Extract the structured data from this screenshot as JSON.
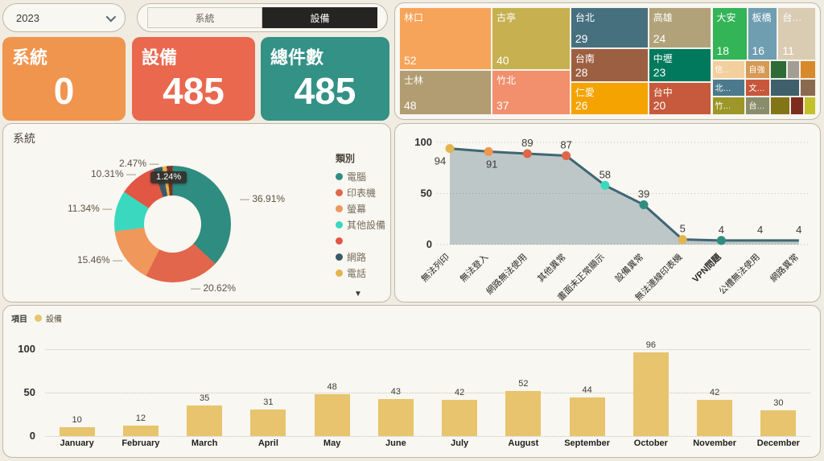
{
  "controls": {
    "year_dropdown": {
      "value": "2023"
    },
    "toggle": {
      "left": "系統",
      "right": "設備"
    }
  },
  "kpis": [
    {
      "label": "系統",
      "value": "0",
      "color": "#F0954E"
    },
    {
      "label": "設備",
      "value": "485",
      "color": "#E9684E"
    },
    {
      "label": "總件數",
      "value": "485",
      "color": "#349186"
    }
  ],
  "chart_data": [
    {
      "type": "treemap",
      "tiles": [
        {
          "label": "林口",
          "value": "52",
          "color": "#F6A45A",
          "x": 0,
          "y": 0,
          "w": 22.2,
          "h": 58.4
        },
        {
          "label": "士林",
          "value": "48",
          "color": "#B29C71",
          "x": 0,
          "y": 58.4,
          "w": 22.2,
          "h": 41.6
        },
        {
          "label": "古亭",
          "value": "40",
          "color": "#C6B04F",
          "x": 22.2,
          "y": 0,
          "w": 18.9,
          "h": 58.4
        },
        {
          "label": "竹北",
          "value": "37",
          "color": "#F28F6D",
          "x": 22.2,
          "y": 58.4,
          "w": 18.9,
          "h": 41.6
        },
        {
          "label": "台北",
          "value": "29",
          "color": "#47707F",
          "x": 41.1,
          "y": 0,
          "w": 18.7,
          "h": 38.0
        },
        {
          "label": "台南",
          "value": "28",
          "color": "#9D5F41",
          "x": 41.1,
          "y": 38.0,
          "w": 18.7,
          "h": 31.3
        },
        {
          "label": "仁愛",
          "value": "26",
          "color": "#F5A300",
          "x": 41.1,
          "y": 69.3,
          "w": 18.7,
          "h": 30.7
        },
        {
          "label": "高雄",
          "value": "24",
          "color": "#B1A279",
          "x": 59.8,
          "y": 0,
          "w": 15.2,
          "h": 38.0
        },
        {
          "label": "中壢",
          "value": "23",
          "color": "#00795C",
          "x": 59.8,
          "y": 38.0,
          "w": 15.2,
          "h": 31.3
        },
        {
          "label": "台中",
          "value": "20",
          "color": "#C75A3C",
          "x": 59.8,
          "y": 69.3,
          "w": 15.2,
          "h": 30.7
        },
        {
          "label": "大安",
          "value": "18",
          "color": "#33B457",
          "x": 75.0,
          "y": 0,
          "w": 8.5,
          "h": 49.6
        },
        {
          "label": "板橋",
          "value": "16",
          "color": "#6F9EB1",
          "x": 83.5,
          "y": 0,
          "w": 7.3,
          "h": 49.6
        },
        {
          "label": "台…",
          "value": "11",
          "color": "#D9CCB3",
          "x": 90.8,
          "y": 0,
          "w": 9.2,
          "h": 49.6
        },
        {
          "label": "信…",
          "value": "",
          "color": "#F2CF9D",
          "x": 75.0,
          "y": 49.6,
          "w": 8.1,
          "h": 16.8
        },
        {
          "label": "自強",
          "value": "",
          "color": "#D59A55",
          "x": 83.1,
          "y": 49.6,
          "w": 5.9,
          "h": 16.8
        },
        {
          "label": "",
          "value": "",
          "color": "#2E6B35",
          "x": 89.0,
          "y": 49.6,
          "w": 4.0,
          "h": 16.8
        },
        {
          "label": "",
          "value": "",
          "color": "#A49D93",
          "x": 93.0,
          "y": 49.6,
          "w": 3.2,
          "h": 16.8
        },
        {
          "label": "",
          "value": "",
          "color": "#D8892B",
          "x": 96.2,
          "y": 49.6,
          "w": 3.8,
          "h": 16.8
        },
        {
          "label": "北…",
          "value": "",
          "color": "#4C7A8C",
          "x": 75.0,
          "y": 66.4,
          "w": 8.1,
          "h": 16.8
        },
        {
          "label": "文…",
          "value": "",
          "color": "#C7573B",
          "x": 83.1,
          "y": 66.4,
          "w": 5.9,
          "h": 16.8
        },
        {
          "label": "",
          "value": "",
          "color": "#3E5F6B",
          "x": 89.0,
          "y": 66.4,
          "w": 7.2,
          "h": 16.8
        },
        {
          "label": "",
          "value": "",
          "color": "#8A6A4F",
          "x": 96.2,
          "y": 66.4,
          "w": 3.8,
          "h": 16.8
        },
        {
          "label": "竹…",
          "value": "",
          "color": "#9C9728",
          "x": 75.0,
          "y": 83.2,
          "w": 8.1,
          "h": 16.8
        },
        {
          "label": "台…",
          "value": "",
          "color": "#8A8D6B",
          "x": 83.1,
          "y": 83.2,
          "w": 5.9,
          "h": 16.8
        },
        {
          "label": "",
          "value": "",
          "color": "#827518",
          "x": 89.0,
          "y": 83.2,
          "w": 4.8,
          "h": 16.8
        },
        {
          "label": "",
          "value": "",
          "color": "#7C2D1D",
          "x": 93.8,
          "y": 83.2,
          "w": 3.4,
          "h": 16.8
        },
        {
          "label": "",
          "value": "",
          "color": "#C2C12A",
          "x": 97.2,
          "y": 83.2,
          "w": 2.8,
          "h": 16.8
        }
      ]
    },
    {
      "type": "pie",
      "panel_title": "系統",
      "legend_title": "類別",
      "slices": [
        {
          "label": "電腦",
          "pct": 36.91,
          "color": "#2F8C80"
        },
        {
          "label": "印表機",
          "pct": 20.62,
          "color": "#E2664B"
        },
        {
          "label": "螢幕",
          "pct": 15.46,
          "color": "#F0975C"
        },
        {
          "label": "其他設備",
          "pct": 11.34,
          "color": "#3AD8BE"
        },
        {
          "label": "",
          "pct": 10.31,
          "color": "#E25744"
        },
        {
          "label": "網路",
          "pct": 2.47,
          "color": "#3A5A66"
        },
        {
          "label": "電話",
          "pct": 1.24,
          "color": "#E2B54D"
        },
        {
          "label": "",
          "pct": 1.65,
          "color": "#7A332A"
        }
      ],
      "callouts": [
        "36.91%",
        "20.62%",
        "15.46%",
        "11.34%",
        "10.31%",
        "2.47%"
      ],
      "tooltip": "1.24%",
      "legend_more_icon": "▼"
    },
    {
      "type": "line",
      "categories": [
        "無法列印",
        "無法登入",
        "網路無法使用",
        "其他異常",
        "畫面未正常顯示",
        "設備異常",
        "無法連線印表機",
        "VPN問題",
        "公槽無法使用",
        "網路異常"
      ],
      "values": [
        94,
        91,
        89,
        87,
        58,
        39,
        5,
        4,
        4,
        4
      ],
      "point_colors": [
        "#E2B54D",
        "#F0964F",
        "#E0664A",
        "#E0664A",
        "#3AD8BE",
        "#2F8C80",
        "#E2B54D",
        "#2F8C80",
        "",
        ""
      ],
      "line_color": "#3E6773",
      "area_color": "rgba(77,108,120,0.35)",
      "bold_category_index": 7,
      "ylim": [
        0,
        100
      ],
      "yticks": [
        0,
        50,
        100
      ],
      "grid": true
    },
    {
      "type": "bar",
      "legend_title": "項目",
      "series_name": "設備",
      "bar_color": "#E7C46D",
      "categories": [
        "January",
        "February",
        "March",
        "April",
        "May",
        "June",
        "July",
        "August",
        "September",
        "October",
        "November",
        "December"
      ],
      "values": [
        10,
        12,
        35,
        31,
        48,
        43,
        42,
        52,
        44,
        96,
        42,
        30
      ],
      "ylim": [
        0,
        100
      ],
      "yticks": [
        0,
        50,
        100
      ],
      "grid": true
    }
  ]
}
